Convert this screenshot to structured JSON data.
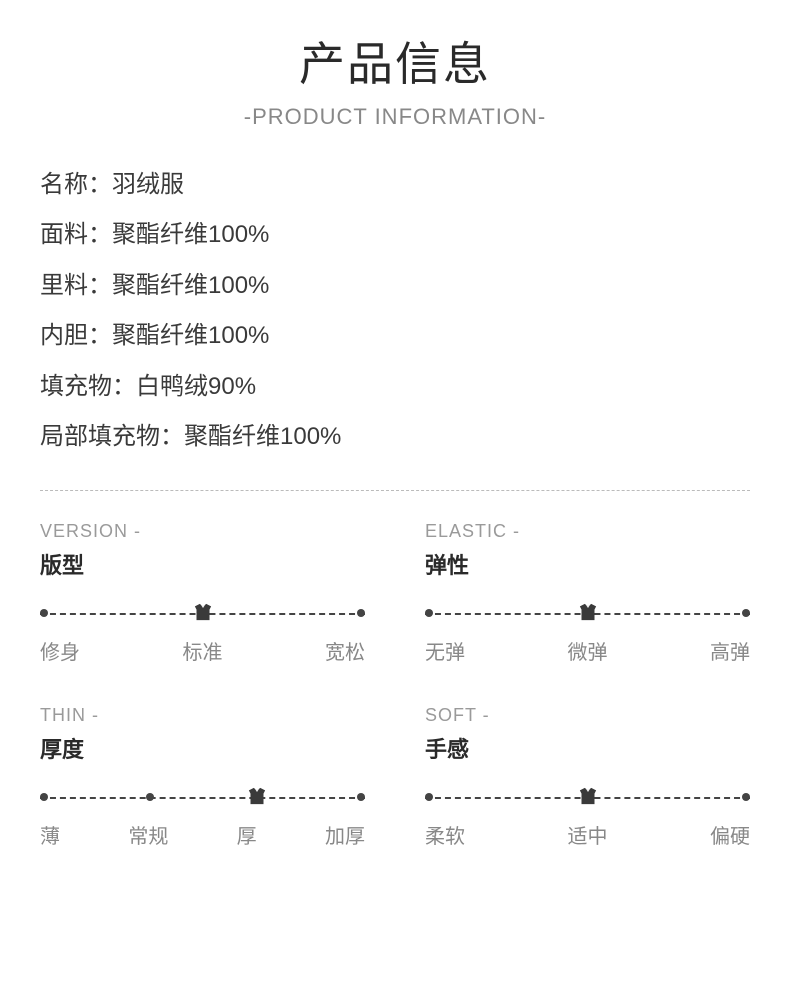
{
  "header": {
    "title_cn": "产品信息",
    "title_en": "-PRODUCT INFORMATION-"
  },
  "specs": [
    {
      "label": "名称",
      "value": "羽绒服"
    },
    {
      "label": "面料",
      "value": "聚酯纤维100%"
    },
    {
      "label": "里料",
      "value": "聚酯纤维100%"
    },
    {
      "label": "内胆",
      "value": "聚酯纤维100%"
    },
    {
      "label": "填充物",
      "value": "白鸭绒90%"
    },
    {
      "label": "局部填充物",
      "value": "聚酯纤维100%"
    }
  ],
  "attributes": [
    {
      "en": "VERSION -",
      "cn": "版型",
      "options": [
        "修身",
        "标准",
        "宽松"
      ],
      "selected_index": 1,
      "option_count": 3
    },
    {
      "en": "ELASTIC -",
      "cn": "弹性",
      "options": [
        "无弹",
        "微弹",
        "高弹"
      ],
      "selected_index": 1,
      "option_count": 3
    },
    {
      "en": "THIN -",
      "cn": "厚度",
      "options": [
        "薄",
        "常规",
        "厚",
        "加厚"
      ],
      "selected_index": 2,
      "option_count": 4
    },
    {
      "en": "SOFT -",
      "cn": "手感",
      "options": [
        "柔软",
        "适中",
        "偏硬"
      ],
      "selected_index": 1,
      "option_count": 3
    }
  ],
  "styling": {
    "page_bg": "#ffffff",
    "title_color": "#2a2a2a",
    "subtitle_color": "#888888",
    "text_color": "#3a3a3a",
    "muted_color": "#888888",
    "line_color": "#444444",
    "divider_color": "#bbbbbb",
    "marker_color": "#3a3a3a",
    "title_fontsize": 46,
    "subtitle_fontsize": 22,
    "spec_fontsize": 24,
    "attr_en_fontsize": 18,
    "attr_cn_fontsize": 22,
    "label_fontsize": 20,
    "dot_diameter": 8,
    "marker_width": 26
  }
}
